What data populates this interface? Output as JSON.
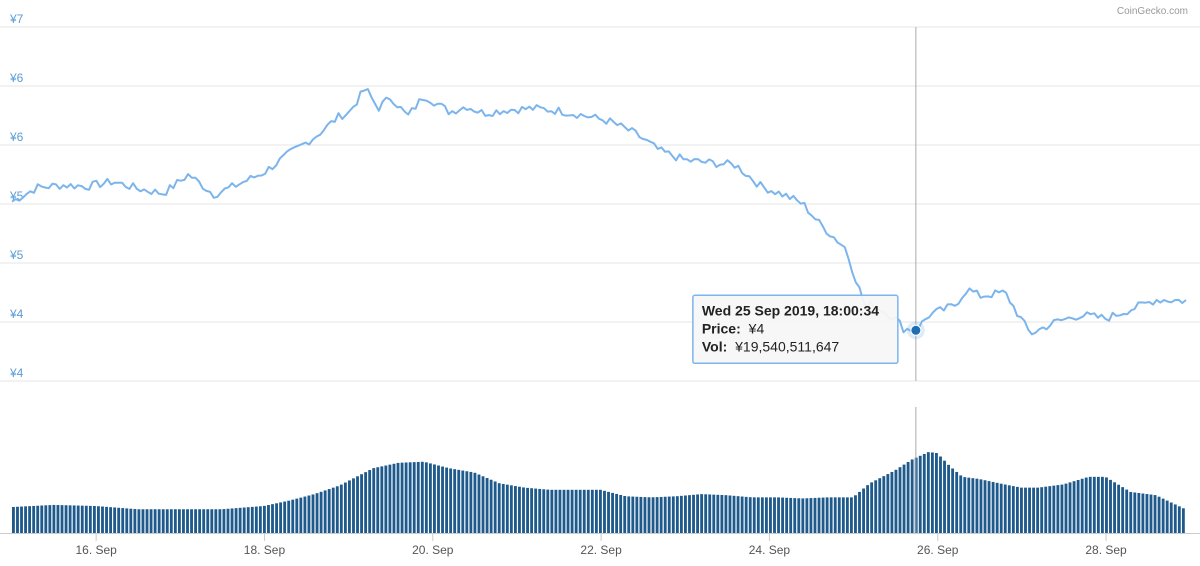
{
  "credit": "CoinGecko.com",
  "colors": {
    "price_line": "#7cb5ec",
    "volume_bar": "#1f5a8c",
    "marker": "#1f6db3",
    "tooltip_border": "#7cb5ec",
    "axis_label": "#5b9bd5",
    "grid": "#e6e6e6"
  },
  "chart_data": {
    "type": "line",
    "title": "",
    "price_axis": {
      "tick_labels": [
        "¥7",
        "¥6",
        "¥6",
        "¥5",
        "¥5",
        "¥4",
        "¥4"
      ],
      "tick_values": [
        6.65,
        6.15,
        5.65,
        5.15,
        4.65,
        4.15,
        3.65
      ],
      "ylim": [
        3.65,
        6.65
      ]
    },
    "x_axis": {
      "tick_labels": [
        "16. Sep",
        "18. Sep",
        "20. Sep",
        "22. Sep",
        "24. Sep",
        "26. Sep",
        "28. Sep"
      ],
      "tick_positions_days": [
        16,
        18,
        20,
        22,
        24,
        26,
        28
      ],
      "xlim_days": [
        15.0,
        28.95
      ]
    },
    "price_series": {
      "name": "Price",
      "unit": "¥",
      "x_days": [
        15.0,
        15.3,
        15.6,
        15.9,
        16.2,
        16.5,
        16.8,
        17.1,
        17.4,
        17.7,
        18.0,
        18.3,
        18.6,
        18.9,
        19.0,
        19.2,
        19.35,
        19.5,
        19.7,
        19.9,
        20.2,
        20.4,
        20.6,
        20.9,
        21.2,
        21.5,
        21.8,
        22.1,
        22.4,
        22.7,
        23.0,
        23.3,
        23.6,
        23.9,
        24.2,
        24.4,
        24.6,
        24.9,
        25.15,
        25.2,
        25.3,
        25.5,
        25.6,
        25.75,
        25.9,
        26.2,
        26.35,
        26.5,
        26.8,
        26.95,
        27.1,
        27.4,
        27.7,
        28.0,
        28.3,
        28.6,
        28.95
      ],
      "values": [
        5.17,
        5.29,
        5.31,
        5.3,
        5.34,
        5.28,
        5.24,
        5.4,
        5.23,
        5.32,
        5.42,
        5.58,
        5.72,
        5.9,
        5.92,
        6.13,
        5.96,
        6.06,
        5.89,
        6.07,
        5.93,
        5.98,
        5.92,
        5.95,
        5.96,
        5.94,
        5.9,
        5.85,
        5.75,
        5.6,
        5.52,
        5.5,
        5.48,
        5.3,
        5.22,
        5.15,
        4.98,
        4.78,
        4.26,
        4.3,
        4.27,
        4.18,
        4.09,
        4.09,
        4.21,
        4.29,
        4.43,
        4.37,
        4.4,
        4.22,
        4.05,
        4.15,
        4.21,
        4.18,
        4.26,
        4.34,
        4.33
      ]
    },
    "volume_series": {
      "name": "Vol",
      "unit": "¥",
      "x_days": [
        15.0,
        15.5,
        16.0,
        16.5,
        17.0,
        17.5,
        18.0,
        18.3,
        18.6,
        18.9,
        19.0,
        19.3,
        19.6,
        19.9,
        20.2,
        20.5,
        20.8,
        21.1,
        21.4,
        21.7,
        22.0,
        22.3,
        22.6,
        22.9,
        23.2,
        23.5,
        23.8,
        24.1,
        24.4,
        24.7,
        25.0,
        25.2,
        25.35,
        25.5,
        25.7,
        25.9,
        26.0,
        26.15,
        26.3,
        26.5,
        26.8,
        27.0,
        27.2,
        27.5,
        27.8,
        28.0,
        28.3,
        28.6,
        28.95
      ],
      "relative_height": [
        0.24,
        0.26,
        0.25,
        0.22,
        0.22,
        0.22,
        0.25,
        0.3,
        0.36,
        0.44,
        0.48,
        0.6,
        0.65,
        0.66,
        0.6,
        0.56,
        0.46,
        0.42,
        0.4,
        0.4,
        0.4,
        0.34,
        0.33,
        0.34,
        0.36,
        0.35,
        0.33,
        0.33,
        0.32,
        0.33,
        0.33,
        0.46,
        0.52,
        0.58,
        0.68,
        0.75,
        0.74,
        0.62,
        0.52,
        0.5,
        0.45,
        0.42,
        0.42,
        0.45,
        0.52,
        0.52,
        0.38,
        0.35,
        0.22
      ]
    },
    "tooltip": {
      "date_line": "Wed 25 Sep 2019, 18:00:34",
      "price_label": "Price:",
      "price_value": "¥4",
      "vol_label": "Vol:",
      "vol_value": "¥19,540,511,647",
      "x_day": 25.74,
      "price": 4.08
    }
  }
}
